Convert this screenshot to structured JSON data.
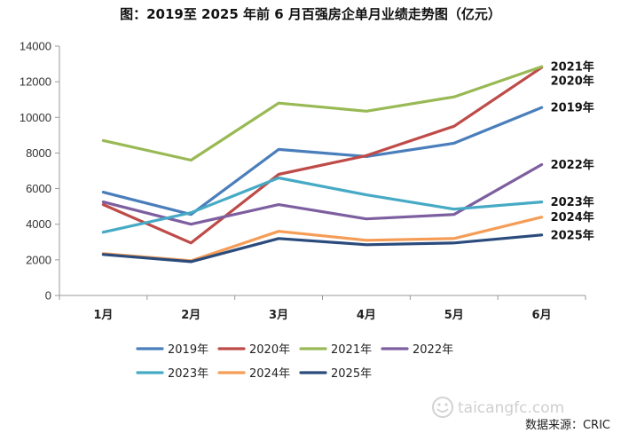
{
  "chart_data": {
    "type": "line",
    "title": "图：2019至 2025 年前 6 月百强房企单月业绩走势图（亿元）",
    "categories": [
      "1月",
      "2月",
      "3月",
      "4月",
      "5月",
      "6月"
    ],
    "ylim": [
      0,
      14000
    ],
    "yticks": [
      0,
      2000,
      4000,
      6000,
      8000,
      10000,
      12000,
      14000
    ],
    "grid": false,
    "legend_position": "bottom",
    "series": [
      {
        "name": "2019年",
        "color": "#4a7ebb",
        "end_label": "2019年",
        "values": [
          5800,
          4550,
          8200,
          7800,
          8550,
          10550
        ]
      },
      {
        "name": "2020年",
        "color": "#be4b48",
        "end_label": "2020年",
        "values": [
          5100,
          2950,
          6800,
          7850,
          9500,
          12800
        ]
      },
      {
        "name": "2021年",
        "color": "#98b954",
        "end_label": "2021年",
        "values": [
          8700,
          7600,
          10800,
          10350,
          11150,
          12850
        ]
      },
      {
        "name": "2022年",
        "color": "#7d5fa0",
        "end_label": "2022年",
        "values": [
          5250,
          4000,
          5100,
          4300,
          4550,
          7350
        ]
      },
      {
        "name": "2023年",
        "color": "#46aac5",
        "end_label": "2023年",
        "values": [
          3550,
          4650,
          6600,
          5650,
          4850,
          5250
        ]
      },
      {
        "name": "2024年",
        "color": "#f59d56",
        "end_label": "2024年",
        "values": [
          2350,
          1950,
          3600,
          3100,
          3200,
          4400
        ]
      },
      {
        "name": "2025年",
        "color": "#2a4b7c",
        "end_label": "2025年",
        "values": [
          2300,
          1900,
          3200,
          2850,
          2950,
          3400
        ]
      }
    ],
    "source": "数据来源：CRIC"
  },
  "watermark": "taicangfc.com",
  "icons": {
    "watermark_logo": "smiley-circle-icon"
  }
}
